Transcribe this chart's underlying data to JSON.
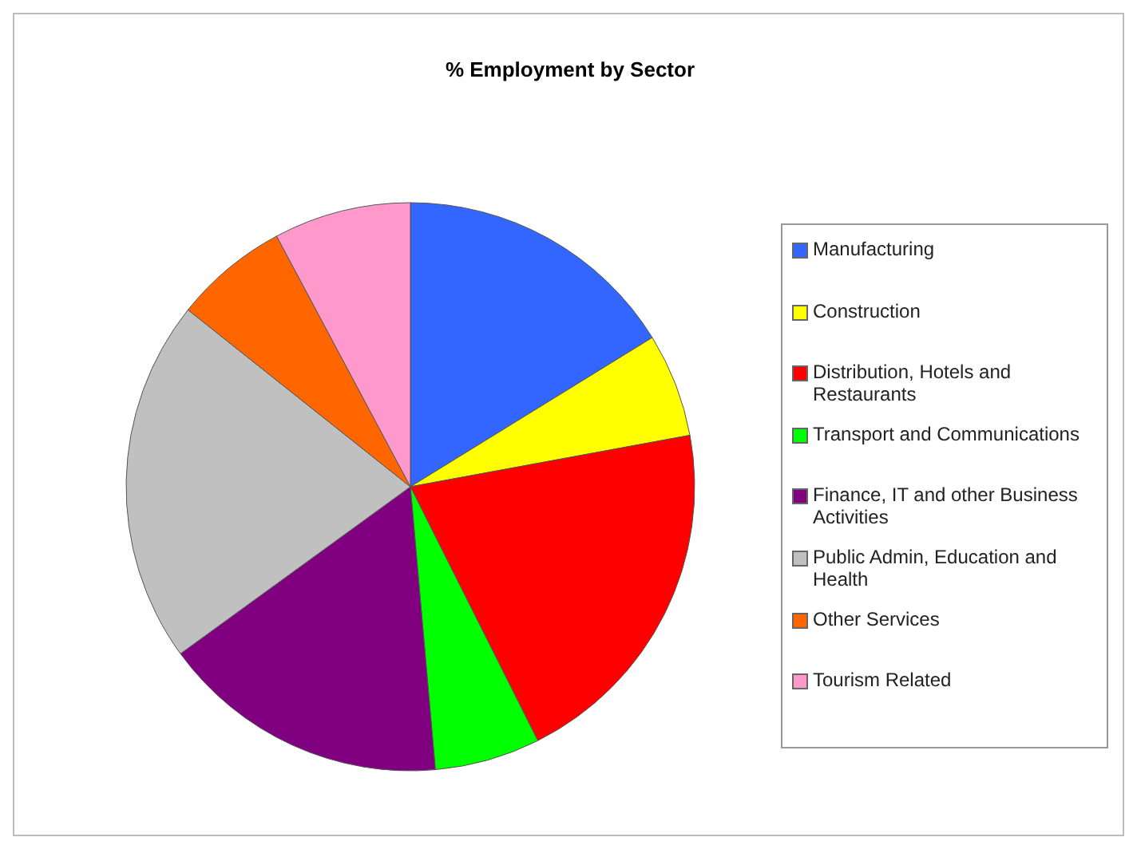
{
  "chart_data": {
    "type": "pie",
    "title": "% Employment by Sector",
    "categories": [
      "Manufacturing",
      "Construction",
      "Distribution, Hotels and Restaurants",
      "Transport and Communications",
      "Finance, IT and other Business Activities",
      "Public Admin, Education and Health",
      "Other Services",
      "Tourism Related"
    ],
    "values": [
      16.2,
      5.9,
      20.5,
      6.0,
      16.4,
      20.7,
      6.5,
      7.8
    ],
    "colors": [
      "#3366ff",
      "#ffff00",
      "#ff0000",
      "#00ff00",
      "#800080",
      "#c0c0c0",
      "#ff6600",
      "#ff99cc"
    ],
    "legend": "right"
  }
}
